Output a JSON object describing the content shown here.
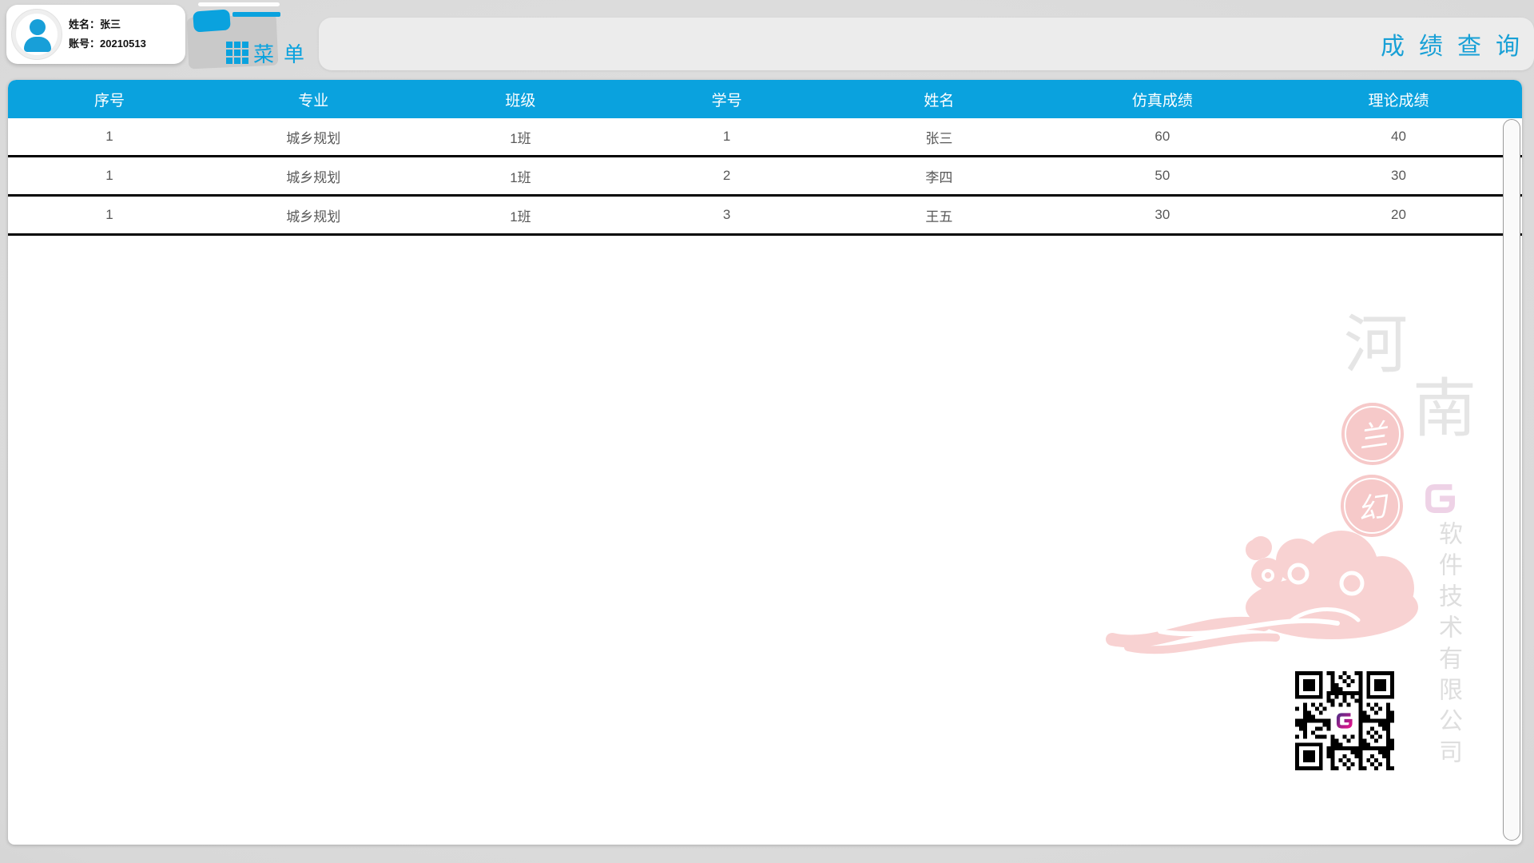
{
  "colors": {
    "accent_blue": "#0aa2de",
    "title_blue": "#18a0d6",
    "header_text": "#ffffff",
    "row_text": "#585858",
    "row_separator": "#000000",
    "watermark_gray": "#e5e5e5",
    "watermark_pink": "#f6c9c9",
    "qr_purple": "#5b2a86",
    "qr_magenta": "#e0148c"
  },
  "user_card": {
    "avatar_icon": "person-icon",
    "name_label": "姓名：",
    "name_value": "张三",
    "account_label": "账号：",
    "account_value": "20210513"
  },
  "menu_button": {
    "icon": "grid-icon",
    "label": "菜单"
  },
  "title_bar": {
    "title": "成绩查询"
  },
  "table": {
    "headers": [
      "序号",
      "专业",
      "班级",
      "学号",
      "姓名",
      "仿真成绩",
      "理论成绩"
    ],
    "rows": [
      [
        "1",
        "城乡规划",
        "1班",
        "1",
        "张三",
        "60",
        "40"
      ],
      [
        "1",
        "城乡规划",
        "1班",
        "2",
        "李四",
        "50",
        "30"
      ],
      [
        "1",
        "城乡规划",
        "1班",
        "3",
        "王五",
        "30",
        "20"
      ]
    ]
  },
  "watermark": {
    "region_chars": [
      "河",
      "南"
    ],
    "seal_chars": [
      "兰",
      "幻"
    ],
    "company_vertical": "软件技术有限公司",
    "logo_icon": "lanhuan-logo-icon",
    "cloud_icon": "auspicious-cloud-icon",
    "qr_icon": "qr-code"
  }
}
